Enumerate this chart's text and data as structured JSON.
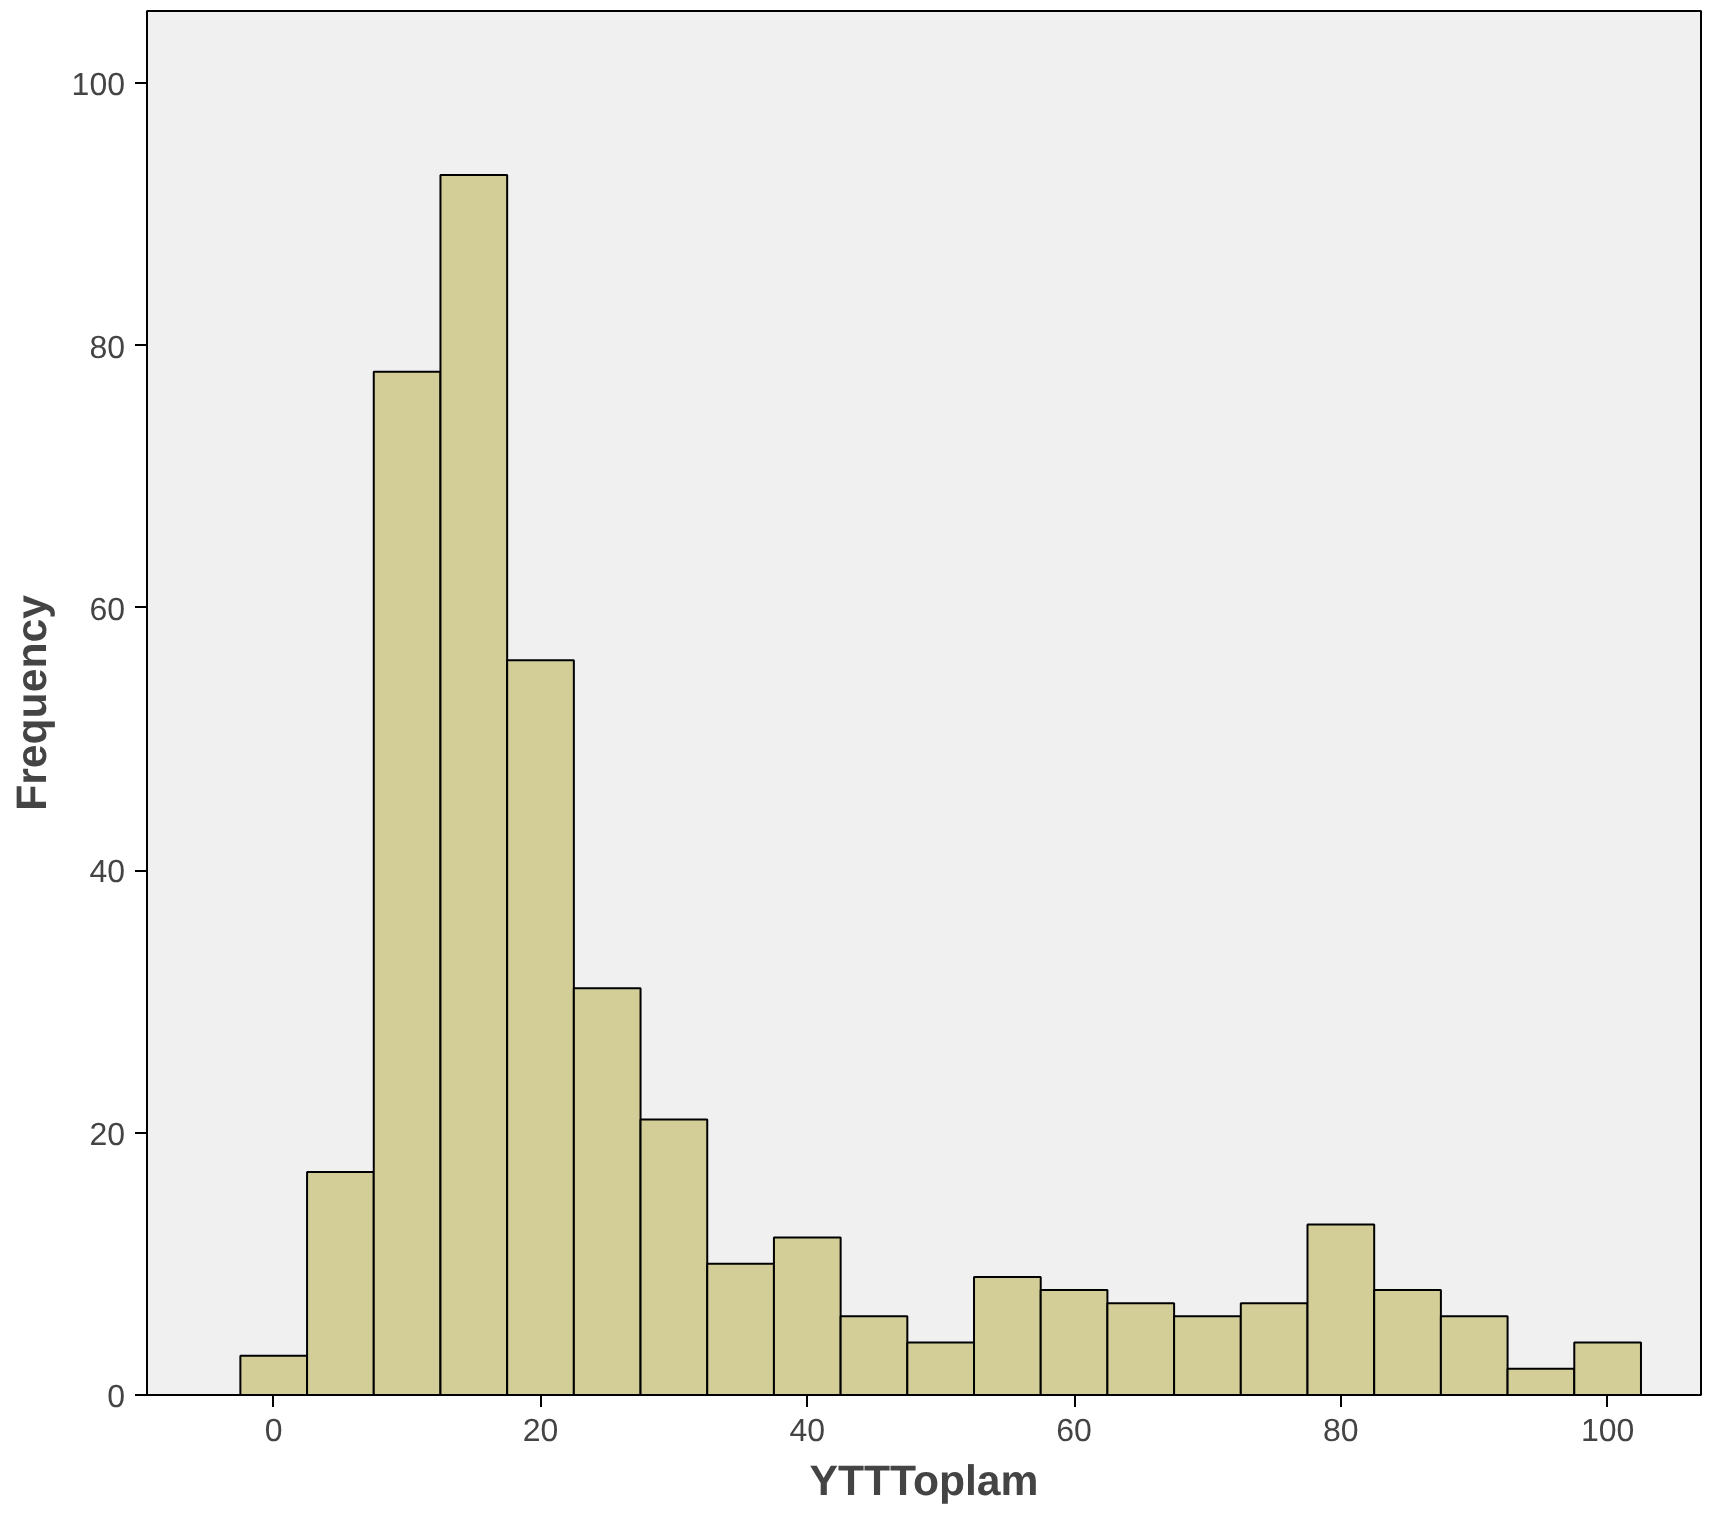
{
  "chart_data": {
    "type": "histogram",
    "xlabel": "YTTToplam",
    "ylabel": "Frequency",
    "bins": [
      -2.5,
      2.5,
      7.5,
      12.5,
      17.5,
      22.5,
      27.5,
      32.5,
      37.5,
      42.5,
      47.5,
      52.5,
      57.5,
      62.5,
      67.5,
      72.5,
      77.5,
      82.5,
      87.5,
      92.5,
      97.5,
      102.5
    ],
    "values": [
      3,
      17,
      78,
      93,
      56,
      31,
      21,
      10,
      12,
      6,
      4,
      9,
      8,
      7,
      6,
      7,
      13,
      8,
      6,
      2,
      4
    ],
    "color": "#d3ce97",
    "xlim": [
      -9.5,
      107
    ],
    "xticks": [
      0,
      20,
      40,
      60,
      80,
      100
    ],
    "ylim": [
      0,
      105.5
    ],
    "yticks": [
      0,
      20,
      40,
      60,
      80,
      100
    ],
    "grid": false
  }
}
